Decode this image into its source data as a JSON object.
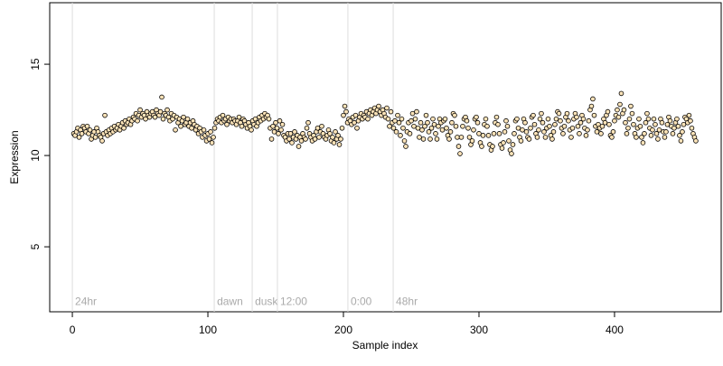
{
  "chart_data": {
    "type": "scatter",
    "x_label": "Sample index",
    "y_label": "Expression",
    "xlim": [
      -16.7,
      478.7
    ],
    "ylim": [
      1.44,
      18.37
    ],
    "xticks": [
      0,
      100,
      200,
      300,
      400
    ],
    "yticks": [
      5,
      10,
      15
    ],
    "point_color": "#fbe3b8",
    "edge_color": "#000000",
    "annotation_color": "#dddddd",
    "annotations": [
      {
        "x": 0,
        "y": 2,
        "label": "24hr"
      },
      {
        "x": 104.7,
        "y": 2,
        "label": "dawn"
      },
      {
        "x": 132.7,
        "y": 2,
        "label": "dusk"
      },
      {
        "x": 151.3,
        "y": 2,
        "label": "12:00"
      },
      {
        "x": 203.3,
        "y": 2,
        "label": "0:00"
      },
      {
        "x": 236.7,
        "y": 2,
        "label": "48hr"
      }
    ],
    "x": [
      1,
      2,
      3,
      4,
      5,
      6,
      7,
      8,
      9,
      10,
      11,
      12,
      13,
      14,
      15,
      16,
      17,
      18,
      19,
      20,
      21,
      22,
      23,
      24,
      25,
      26,
      27,
      28,
      29,
      30,
      31,
      32,
      33,
      34,
      35,
      36,
      37,
      38,
      39,
      40,
      41,
      42,
      43,
      44,
      45,
      46,
      47,
      48,
      49,
      50,
      51,
      52,
      53,
      54,
      55,
      56,
      57,
      58,
      59,
      60,
      61,
      62,
      63,
      64,
      65,
      66,
      67,
      68,
      69,
      70,
      71,
      72,
      73,
      74,
      75,
      76,
      77,
      78,
      79,
      80,
      81,
      82,
      83,
      84,
      85,
      86,
      87,
      88,
      89,
      90,
      91,
      92,
      93,
      94,
      95,
      96,
      97,
      98,
      99,
      100,
      101,
      102,
      103,
      104,
      105,
      106,
      107,
      108,
      109,
      110,
      111,
      112,
      113,
      114,
      115,
      116,
      117,
      118,
      119,
      120,
      121,
      122,
      123,
      124,
      125,
      126,
      127,
      128,
      129,
      130,
      131,
      132,
      133,
      134,
      135,
      136,
      137,
      138,
      139,
      140,
      141,
      142,
      143,
      144,
      145,
      146,
      147,
      148,
      149,
      150,
      151,
      152,
      153,
      154,
      155,
      156,
      157,
      158,
      159,
      160,
      161,
      162,
      163,
      164,
      165,
      166,
      167,
      168,
      169,
      170,
      171,
      172,
      173,
      174,
      175,
      176,
      177,
      178,
      179,
      180,
      181,
      182,
      183,
      184,
      185,
      186,
      187,
      188,
      189,
      190,
      191,
      192,
      193,
      194,
      195,
      196,
      197,
      198,
      199,
      200,
      201,
      202,
      203,
      204,
      205,
      206,
      207,
      208,
      209,
      210,
      211,
      212,
      213,
      214,
      215,
      216,
      217,
      218,
      219,
      220,
      221,
      222,
      223,
      224,
      225,
      226,
      227,
      228,
      229,
      230,
      231,
      232,
      233,
      234,
      235,
      236,
      237,
      238,
      239,
      240,
      241,
      242,
      243,
      244,
      245,
      246,
      247,
      248,
      249,
      250,
      251,
      252,
      253,
      254,
      255,
      256,
      257,
      258,
      259,
      260,
      261,
      262,
      263,
      264,
      265,
      266,
      267,
      268,
      269,
      270,
      271,
      272,
      273,
      274,
      275,
      276,
      277,
      278,
      279,
      280,
      281,
      282,
      283,
      284,
      285,
      286,
      287,
      288,
      289,
      290,
      291,
      292,
      293,
      294,
      295,
      296,
      297,
      298,
      299,
      300,
      301,
      302,
      303,
      304,
      305,
      306,
      307,
      308,
      309,
      310,
      311,
      312,
      313,
      314,
      315,
      316,
      317,
      318,
      319,
      320,
      321,
      322,
      323,
      324,
      325,
      326,
      327,
      328,
      329,
      330,
      331,
      332,
      333,
      334,
      335,
      336,
      337,
      338,
      339,
      340,
      341,
      342,
      343,
      344,
      345,
      346,
      347,
      348,
      349,
      350,
      351,
      352,
      353,
      354,
      355,
      356,
      357,
      358,
      359,
      360,
      361,
      362,
      363,
      364,
      365,
      366,
      367,
      368,
      369,
      370,
      371,
      372,
      373,
      374,
      375,
      376,
      377,
      378,
      379,
      380,
      381,
      382,
      383,
      384,
      385,
      386,
      387,
      388,
      389,
      390,
      391,
      392,
      393,
      394,
      395,
      396,
      397,
      398,
      399,
      400,
      401,
      402,
      403,
      404,
      405,
      406,
      407,
      408,
      409,
      410,
      411,
      412,
      413,
      414,
      415,
      416,
      417,
      418,
      419,
      420,
      421,
      422,
      423,
      424,
      425,
      426,
      427,
      428,
      429,
      430,
      431,
      432,
      433,
      434,
      435,
      436,
      437,
      438,
      439,
      440,
      441,
      442,
      443,
      444,
      445,
      446,
      447,
      448,
      449,
      450,
      451,
      452,
      453,
      454,
      455,
      456,
      457,
      458,
      459,
      460
    ],
    "values": [
      11.2,
      11.1,
      11.3,
      11.5,
      11.0,
      11.4,
      11.2,
      11.6,
      11.5,
      11.3,
      11.6,
      11.2,
      11.4,
      10.9,
      11.1,
      11.3,
      11.0,
      11.5,
      11.3,
      11.1,
      11.0,
      10.8,
      11.2,
      12.2,
      11.3,
      11.1,
      11.4,
      11.2,
      11.5,
      11.3,
      11.6,
      11.4,
      11.5,
      11.7,
      11.4,
      11.6,
      11.8,
      11.5,
      11.9,
      11.7,
      11.8,
      12.0,
      11.7,
      11.9,
      12.1,
      12.0,
      12.3,
      11.9,
      12.2,
      12.5,
      12.1,
      12.3,
      12.2,
      12.0,
      12.4,
      12.2,
      12.1,
      12.3,
      12.4,
      12.2,
      12.1,
      12.5,
      12.3,
      12.2,
      12.4,
      13.2,
      12.0,
      12.3,
      12.2,
      12.5,
      12.1,
      11.9,
      12.3,
      12.0,
      12.2,
      11.4,
      12.1,
      11.8,
      12.0,
      11.6,
      11.9,
      12.1,
      11.7,
      11.8,
      12.0,
      11.6,
      11.8,
      11.5,
      11.9,
      11.7,
      11.4,
      11.6,
      11.2,
      11.5,
      11.3,
      11.0,
      11.4,
      11.1,
      10.8,
      11.2,
      10.9,
      11.3,
      10.7,
      11.0,
      11.5,
      11.8,
      12.0,
      11.9,
      12.1,
      11.8,
      12.2,
      11.9,
      12.0,
      11.7,
      12.1,
      11.9,
      12.0,
      11.8,
      12.0,
      11.9,
      11.7,
      11.9,
      12.1,
      11.8,
      11.6,
      12.0,
      11.9,
      11.7,
      11.5,
      11.8,
      11.6,
      11.4,
      11.9,
      11.7,
      12.0,
      11.6,
      11.8,
      12.1,
      11.9,
      12.2,
      12.0,
      12.3,
      12.1,
      12.2,
      12.0,
      11.5,
      10.9,
      11.6,
      11.3,
      11.8,
      11.5,
      11.2,
      11.9,
      11.4,
      11.7,
      11.1,
      11.0,
      10.8,
      11.2,
      10.9,
      11.2,
      10.7,
      11.0,
      11.3,
      10.9,
      11.1,
      10.5,
      11.0,
      10.8,
      11.2,
      11.0,
      10.9,
      11.5,
      11.8,
      11.2,
      11.0,
      10.8,
      11.1,
      10.9,
      11.3,
      11.5,
      11.0,
      11.3,
      11.6,
      11.2,
      11.0,
      10.9,
      11.1,
      11.4,
      11.2,
      10.8,
      11.0,
      10.7,
      11.3,
      10.9,
      11.1,
      10.6,
      10.9,
      11.5,
      12.2,
      12.7,
      12.4,
      11.8,
      12.0,
      11.9,
      11.7,
      12.1,
      11.8,
      12.2,
      11.5,
      11.9,
      12.1,
      12.3,
      12.0,
      12.2,
      12.1,
      12.4,
      12.0,
      12.3,
      12.5,
      12.2,
      12.4,
      12.6,
      12.3,
      12.5,
      12.7,
      12.4,
      12.2,
      12.5,
      12.3,
      12.1,
      12.6,
      12.0,
      11.6,
      12.4,
      11.8,
      11.5,
      11.9,
      11.3,
      12.2,
      11.8,
      11.1,
      12.0,
      11.5,
      10.8,
      10.5,
      11.3,
      11.8,
      11.2,
      11.9,
      12.3,
      11.6,
      12.0,
      12.4,
      11.5,
      11.0,
      11.8,
      11.4,
      10.9,
      11.6,
      12.2,
      11.8,
      11.3,
      10.9,
      11.5,
      12.0,
      11.7,
      11.2,
      10.9,
      11.6,
      12.0,
      11.8,
      11.4,
      11.9,
      12.0,
      11.5,
      11.1,
      10.9,
      11.3,
      11.8,
      12.3,
      12.2,
      11.6,
      11.0,
      10.5,
      10.1,
      11.0,
      11.6,
      12.0,
      12.1,
      11.9,
      11.5,
      11.0,
      10.6,
      10.8,
      11.4,
      12.0,
      12.1,
      11.8,
      11.2,
      10.7,
      10.5,
      11.1,
      11.7,
      12.0,
      11.6,
      11.1,
      10.6,
      10.3,
      10.5,
      11.2,
      11.8,
      12.1,
      11.7,
      11.2,
      10.6,
      10.4,
      10.7,
      11.3,
      11.9,
      11.6,
      10.8,
      10.3,
      10.1,
      10.6,
      11.2,
      11.9,
      12.0,
      11.5,
      11.0,
      10.8,
      11.4,
      12.0,
      11.8,
      11.3,
      11.0,
      10.9,
      11.5,
      12.1,
      12.2,
      11.7,
      11.2,
      11.0,
      11.4,
      12.0,
      12.3,
      11.8,
      11.3,
      11.0,
      11.5,
      12.0,
      11.6,
      11.1,
      10.9,
      11.3,
      11.7,
      12.0,
      12.4,
      12.3,
      11.9,
      11.5,
      11.2,
      11.6,
      12.1,
      12.3,
      11.9,
      11.4,
      11.0,
      11.5,
      12.0,
      12.3,
      12.1,
      11.6,
      11.2,
      11.8,
      12.2,
      12.0,
      11.5,
      11.1,
      11.4,
      11.9,
      12.5,
      12.7,
      13.1,
      12.2,
      11.6,
      11.3,
      11.7,
      11.5,
      11.2,
      11.6,
      12.0,
      11.8,
      12.2,
      12.4,
      11.7,
      11.1,
      11.0,
      11.3,
      11.9,
      12.2,
      12.5,
      12.1,
      12.8,
      13.4,
      12.3,
      12.5,
      11.8,
      11.2,
      11.5,
      12.0,
      12.7,
      12.3,
      11.7,
      11.2,
      11.0,
      11.5,
      12.0,
      11.6,
      11.0,
      10.7,
      11.2,
      11.8,
      12.3,
      12.0,
      11.5,
      11.1,
      11.4,
      12.0,
      11.7,
      11.2,
      10.9,
      11.4,
      12.0,
      11.8,
      11.3,
      11.0,
      11.3,
      11.7,
      12.1,
      11.9,
      11.6,
      11.2,
      11.5,
      11.8,
      12.0,
      11.6,
      11.1,
      10.8,
      11.3,
      11.7,
      12.1,
      12.0,
      11.8,
      12.2,
      11.9,
      11.5,
      11.2,
      11.0,
      10.8
    ]
  }
}
